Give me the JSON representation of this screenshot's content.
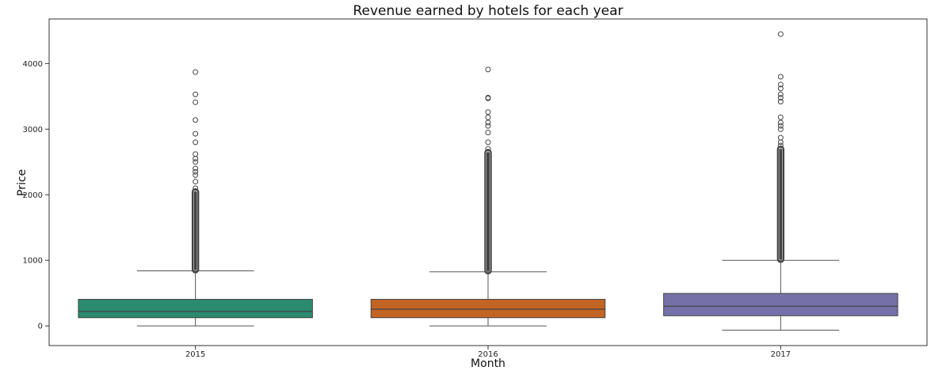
{
  "chart_data": {
    "type": "box",
    "title": "Revenue earned by hotels for each year",
    "xlabel": "Month",
    "ylabel": "Price",
    "categories": [
      "2015",
      "2016",
      "2017"
    ],
    "y_ticks": [
      0,
      1000,
      2000,
      3000,
      4000
    ],
    "ylim": [
      -300,
      4680
    ],
    "grid": false,
    "legend": "none",
    "boxes": [
      {
        "category": "2015",
        "color": "#2a8b6e",
        "whisker_low": 0,
        "q1": 125,
        "median": 220,
        "q3": 405,
        "whisker_high": 840,
        "outlier_band": [
          850,
          2050
        ],
        "outliers": [
          2100,
          2200,
          2300,
          2350,
          2400,
          2500,
          2550,
          2620,
          2800,
          2930,
          3140,
          3410,
          3530,
          3870
        ]
      },
      {
        "category": "2016",
        "color": "#c26424",
        "whisker_low": 0,
        "q1": 125,
        "median": 255,
        "q3": 405,
        "whisker_high": 825,
        "outlier_band": [
          835,
          2650
        ],
        "outliers": [
          2700,
          2800,
          2950,
          3050,
          3100,
          3180,
          3260,
          3470,
          3480,
          3910
        ]
      },
      {
        "category": "2017",
        "color": "#7570a8",
        "whisker_low": -65,
        "q1": 155,
        "median": 300,
        "q3": 495,
        "whisker_high": 1000,
        "outlier_band": [
          1010,
          2700
        ],
        "outliers": [
          2750,
          2800,
          2870,
          3000,
          3050,
          3100,
          3180,
          3420,
          3480,
          3530,
          3620,
          3680,
          3800,
          4450
        ]
      }
    ]
  }
}
